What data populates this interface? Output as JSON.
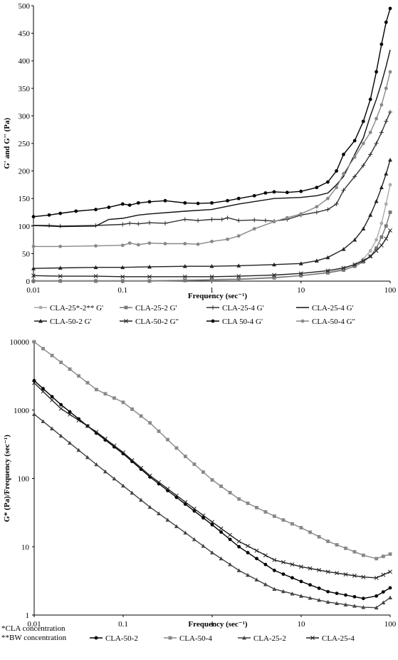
{
  "chart_data": [
    {
      "type": "line",
      "xscale": "log",
      "xlabel": "Frequency (sec⁻¹)",
      "ylabel": "G' and G'' (Pa)",
      "xlim": [
        0.01,
        100
      ],
      "ylim": [
        0,
        500
      ],
      "yticks": [
        "0",
        "50",
        "100",
        "150",
        "200",
        "250",
        "300",
        "350",
        "400",
        "450",
        "500"
      ],
      "xticks": [
        "0.01",
        "0.1",
        "1",
        "10",
        "100"
      ],
      "grid": false,
      "legend_position": "bottom",
      "series": [
        {
          "name": "CLA-25*-2** G'",
          "color": "#aaaaaa",
          "marker": "dot",
          "x": [
            0.01,
            0.02,
            0.05,
            0.1,
            0.2,
            0.5,
            1,
            2,
            5,
            10,
            20,
            30,
            40,
            50,
            60,
            70,
            80,
            90,
            100
          ],
          "y": [
            1,
            1,
            1,
            1,
            1,
            2,
            3,
            4,
            7,
            10,
            16,
            22,
            30,
            40,
            55,
            75,
            105,
            140,
            175
          ]
        },
        {
          "name": "CLA-25-2 G'",
          "color": "#777777",
          "marker": "square",
          "x": [
            0.01,
            0.02,
            0.05,
            0.1,
            0.2,
            0.5,
            1,
            2,
            5,
            10,
            20,
            30,
            40,
            50,
            60,
            70,
            80,
            90,
            100
          ],
          "y": [
            0,
            0,
            0,
            0,
            0,
            1,
            2,
            3,
            6,
            10,
            15,
            20,
            27,
            35,
            45,
            60,
            80,
            100,
            125
          ]
        },
        {
          "name": "CLA-25-4 G'",
          "color": "#333333",
          "marker": "plus",
          "x": [
            0.01,
            0.015,
            0.02,
            0.05,
            0.1,
            0.12,
            0.15,
            0.2,
            0.3,
            0.5,
            0.7,
            1,
            1.3,
            1.5,
            2,
            3,
            4,
            5,
            7,
            10,
            15,
            20,
            25,
            30,
            40,
            50,
            60,
            70,
            80,
            90,
            100
          ],
          "y": [
            101,
            101,
            100,
            101,
            103,
            105,
            104,
            106,
            105,
            112,
            110,
            112,
            112,
            115,
            110,
            111,
            110,
            109,
            112,
            120,
            125,
            130,
            140,
            165,
            190,
            210,
            230,
            250,
            270,
            290,
            307
          ]
        },
        {
          "name": "CLA-25-4 G'",
          "color": "#111111",
          "marker": "none",
          "x": [
            0.01,
            0.015,
            0.02,
            0.05,
            0.07,
            0.1,
            0.15,
            0.2,
            0.5,
            1,
            2,
            5,
            10,
            15,
            20,
            25,
            30,
            40,
            50,
            60,
            70,
            80,
            90,
            100
          ],
          "y": [
            101,
            100,
            99,
            100,
            112,
            114,
            120,
            122,
            127,
            130,
            140,
            150,
            152,
            155,
            160,
            175,
            190,
            230,
            260,
            300,
            330,
            360,
            390,
            420
          ]
        },
        {
          "name": "CLA-50-2 G'",
          "color": "#222222",
          "marker": "triangle",
          "x": [
            0.01,
            0.02,
            0.05,
            0.1,
            0.2,
            0.5,
            1,
            2,
            5,
            10,
            15,
            20,
            30,
            40,
            50,
            60,
            70,
            80,
            90,
            100
          ],
          "y": [
            23,
            24,
            25,
            25,
            26,
            27,
            27,
            28,
            30,
            32,
            37,
            43,
            58,
            75,
            95,
            120,
            145,
            170,
            195,
            220
          ]
        },
        {
          "name": "CLA-50-2 G\"",
          "color": "#222222",
          "marker": "x",
          "x": [
            0.01,
            0.02,
            0.05,
            0.1,
            0.2,
            0.5,
            1,
            2,
            5,
            10,
            20,
            30,
            40,
            50,
            60,
            70,
            80,
            90,
            100
          ],
          "y": [
            10,
            9,
            9,
            8,
            8,
            8,
            8,
            9,
            11,
            14,
            19,
            24,
            30,
            37,
            45,
            55,
            65,
            77,
            92
          ]
        },
        {
          "name": "CLA 50-4 G'",
          "color": "#000000",
          "marker": "dot",
          "x": [
            0.01,
            0.015,
            0.02,
            0.03,
            0.05,
            0.07,
            0.1,
            0.12,
            0.15,
            0.2,
            0.3,
            0.5,
            0.7,
            1,
            1.5,
            2,
            3,
            4,
            5,
            7,
            10,
            15,
            20,
            25,
            30,
            40,
            50,
            60,
            70,
            80,
            90,
            100
          ],
          "y": [
            117,
            120,
            123,
            127,
            130,
            134,
            140,
            138,
            142,
            144,
            146,
            142,
            141,
            142,
            146,
            150,
            155,
            160,
            162,
            161,
            163,
            170,
            180,
            200,
            230,
            255,
            290,
            330,
            380,
            430,
            470,
            495
          ]
        },
        {
          "name": "CLA-50-4 G\"",
          "color": "#888888",
          "marker": "dot",
          "x": [
            0.01,
            0.02,
            0.05,
            0.1,
            0.12,
            0.15,
            0.2,
            0.3,
            0.5,
            0.7,
            1,
            1.5,
            2,
            3,
            5,
            7,
            10,
            15,
            20,
            25,
            30,
            40,
            50,
            60,
            70,
            80,
            90,
            100
          ],
          "y": [
            63,
            63,
            64,
            65,
            69,
            66,
            69,
            68,
            68,
            67,
            72,
            76,
            82,
            95,
            108,
            115,
            122,
            135,
            150,
            170,
            195,
            225,
            250,
            270,
            295,
            320,
            350,
            380
          ]
        }
      ]
    },
    {
      "type": "line",
      "xscale": "log",
      "yscale": "log",
      "xlabel": "Frequency (sec⁻¹)",
      "ylabel": "G* (Pa)/Frequency (sec⁻¹)",
      "xlim": [
        0.01,
        100
      ],
      "ylim": [
        1,
        10000
      ],
      "yticks": [
        "1",
        "10",
        "100",
        "1000",
        "10000"
      ],
      "xticks": [
        "0.01",
        "0.1",
        "1",
        "10",
        "100"
      ],
      "grid": false,
      "legend_position": "bottom",
      "notes": [
        "*CLA concentration",
        "**BW concentration"
      ],
      "series": [
        {
          "name": "CLA-50-2",
          "color": "#000000",
          "marker": "dot",
          "x": [
            0.01,
            0.02,
            0.05,
            0.1,
            0.2,
            0.5,
            1,
            2,
            5,
            10,
            20,
            50,
            70,
            100
          ],
          "y": [
            2700,
            1200,
            460,
            230,
            105,
            42,
            21,
            10,
            4.5,
            3.1,
            2.2,
            1.75,
            1.9,
            2.5
          ]
        },
        {
          "name": "CLA-50-4",
          "color": "#888888",
          "marker": "square",
          "x": [
            0.01,
            0.02,
            0.05,
            0.1,
            0.2,
            0.5,
            1,
            2,
            5,
            10,
            20,
            50,
            70,
            100
          ],
          "y": [
            10000,
            5000,
            2000,
            1300,
            650,
            210,
            95,
            50,
            28,
            19,
            12,
            7.5,
            6.7,
            7.8
          ]
        },
        {
          "name": "CLA-25-2",
          "color": "#444444",
          "marker": "triangle",
          "x": [
            0.01,
            0.02,
            0.05,
            0.1,
            0.2,
            0.5,
            1,
            2,
            5,
            10,
            20,
            50,
            70,
            100
          ],
          "y": [
            870,
            420,
            160,
            78,
            38,
            16,
            8.2,
            4.5,
            2.4,
            1.9,
            1.55,
            1.3,
            1.28,
            1.8
          ]
        },
        {
          "name": "CLA-25-4",
          "color": "#222222",
          "marker": "x",
          "x": [
            0.01,
            0.02,
            0.05,
            0.1,
            0.2,
            0.5,
            1,
            2,
            5,
            10,
            20,
            50,
            70,
            100
          ],
          "y": [
            2500,
            1050,
            480,
            240,
            110,
            45,
            23,
            12,
            6.4,
            5.1,
            4.3,
            3.6,
            3.5,
            4.3
          ]
        }
      ]
    }
  ]
}
